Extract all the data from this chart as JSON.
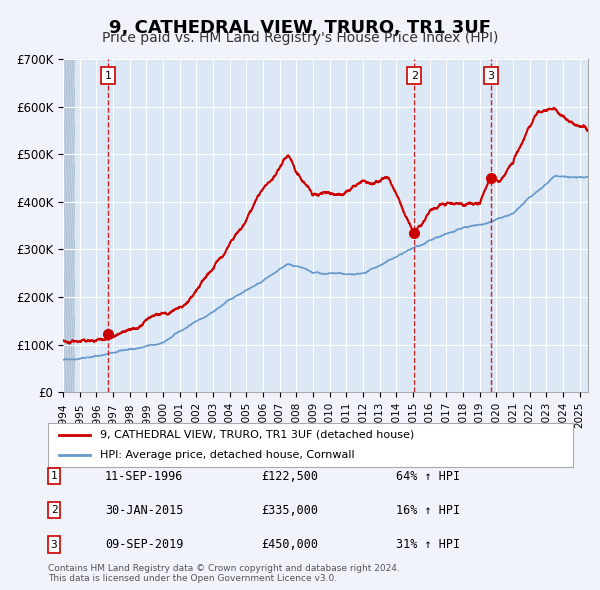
{
  "title": "9, CATHEDRAL VIEW, TRURO, TR1 3UF",
  "subtitle": "Price paid vs. HM Land Registry's House Price Index (HPI)",
  "title_fontsize": 13,
  "subtitle_fontsize": 10,
  "bg_color": "#f0f4fa",
  "plot_bg_color": "#dce8f5",
  "hatch_color": "#c0cfe0",
  "grid_color": "#ffffff",
  "red_line_color": "#cc0000",
  "blue_line_color": "#6699cc",
  "ylim": [
    0,
    700000
  ],
  "yticks": [
    0,
    100000,
    200000,
    300000,
    400000,
    500000,
    600000,
    700000
  ],
  "ytick_labels": [
    "£0",
    "£100K",
    "£200K",
    "£300K",
    "£400K",
    "£500K",
    "£600K",
    "£700K"
  ],
  "xlim_start": 1994.0,
  "xlim_end": 2025.5,
  "xtick_years": [
    1994,
    1995,
    1996,
    1997,
    1998,
    1999,
    2000,
    2001,
    2002,
    2003,
    2004,
    2005,
    2006,
    2007,
    2008,
    2009,
    2010,
    2011,
    2012,
    2013,
    2014,
    2015,
    2016,
    2017,
    2018,
    2019,
    2020,
    2021,
    2022,
    2023,
    2024,
    2025
  ],
  "sale_dates": [
    1996.7,
    2015.08,
    2019.69
  ],
  "sale_prices": [
    122500,
    335000,
    450000
  ],
  "sale_labels": [
    "1",
    "2",
    "3"
  ],
  "legend_label_red": "9, CATHEDRAL VIEW, TRURO, TR1 3UF (detached house)",
  "legend_label_blue": "HPI: Average price, detached house, Cornwall",
  "table_entries": [
    {
      "num": "1",
      "date": "11-SEP-1996",
      "price": "£122,500",
      "pct": "64% ↑ HPI"
    },
    {
      "num": "2",
      "date": "30-JAN-2015",
      "price": "£335,000",
      "pct": "16% ↑ HPI"
    },
    {
      "num": "3",
      "date": "09-SEP-2019",
      "price": "£450,000",
      "pct": "31% ↑ HPI"
    }
  ],
  "footnote": "Contains HM Land Registry data © Crown copyright and database right 2024.\nThis data is licensed under the Open Government Licence v3.0.",
  "sale1_x": 1996.7,
  "sale1_y": 122500,
  "sale2_x": 2015.08,
  "sale2_y": 335000,
  "sale3_x": 2019.69,
  "sale3_y": 450000,
  "hpi_anchors": [
    [
      1994.0,
      68000
    ],
    [
      2000.0,
      102000
    ],
    [
      2004.0,
      195000
    ],
    [
      2007.5,
      270000
    ],
    [
      2009.0,
      245000
    ],
    [
      2012.0,
      235000
    ],
    [
      2015.0,
      288000
    ],
    [
      2016.0,
      305000
    ],
    [
      2021.0,
      350000
    ],
    [
      2023.5,
      430000
    ],
    [
      2025.5,
      425000
    ]
  ],
  "red_anchors": [
    [
      1994.0,
      110000
    ],
    [
      1996.7,
      122500
    ],
    [
      1999.0,
      155000
    ],
    [
      2001.5,
      195000
    ],
    [
      2004.0,
      310000
    ],
    [
      2007.5,
      490000
    ],
    [
      2009.0,
      410000
    ],
    [
      2011.0,
      425000
    ],
    [
      2012.0,
      450000
    ],
    [
      2013.5,
      465000
    ],
    [
      2015.08,
      335000
    ],
    [
      2016.0,
      385000
    ],
    [
      2017.5,
      400000
    ],
    [
      2019.0,
      395000
    ],
    [
      2019.69,
      450000
    ],
    [
      2020.2,
      440000
    ],
    [
      2021.0,
      470000
    ],
    [
      2022.5,
      595000
    ],
    [
      2023.5,
      610000
    ],
    [
      2024.5,
      580000
    ],
    [
      2025.5,
      560000
    ]
  ]
}
